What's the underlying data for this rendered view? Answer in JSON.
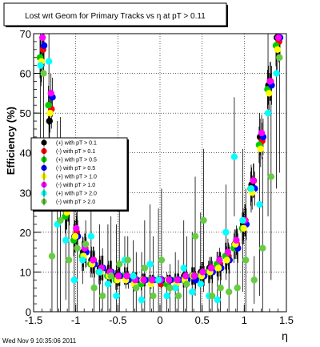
{
  "chart_data": {
    "type": "scatter",
    "title": "Lost wrt Geom for Primary Tracks vs   η at pT > 0.11",
    "xlabel": "η",
    "ylabel": "Efficiency (%)",
    "xlim": [
      -1.5,
      1.5
    ],
    "ylim": [
      0,
      70
    ],
    "x_ticks": [
      "-1.5",
      "-1",
      "-0.5",
      "0",
      "0.5",
      "1",
      "1.5"
    ],
    "y_ticks": [
      "0",
      "10",
      "20",
      "30",
      "40",
      "50",
      "60",
      "70"
    ],
    "grid": true,
    "legend_position": "left-middle",
    "footer": "Wed Nov  9 10:35:06 2011",
    "series": [
      {
        "name": "(+) with pT > 0.1",
        "color": "#000000",
        "x": [
          -1.4,
          -1.3,
          -1.2,
          -1.1,
          -1.0,
          -0.9,
          -0.8,
          -0.7,
          -0.6,
          -0.5,
          -0.4,
          -0.3,
          -0.2,
          -0.1,
          0.0,
          0.1,
          0.2,
          0.3,
          0.4,
          0.5,
          0.6,
          0.7,
          0.8,
          0.9,
          1.0,
          1.1,
          1.2,
          1.3,
          1.4
        ],
        "y": [
          62,
          48,
          33,
          25,
          19,
          15,
          13,
          11,
          10,
          9,
          9,
          8,
          8,
          8,
          8,
          8,
          8,
          9,
          9,
          10,
          11,
          12,
          14,
          17,
          22,
          32,
          44,
          57,
          69
        ]
      },
      {
        "name": "(-) with pT > 0.1",
        "color": "#ff0000",
        "x": [
          -1.4,
          -1.3,
          -1.2,
          -1.1,
          -1.0,
          -0.9,
          -0.8,
          -0.7,
          -0.6,
          -0.5,
          -0.4,
          -0.3,
          -0.2,
          -0.1,
          0.0,
          0.1,
          0.2,
          0.3,
          0.4,
          0.5,
          0.6,
          0.7,
          0.8,
          0.9,
          1.0,
          1.1,
          1.2,
          1.3,
          1.4
        ],
        "y": [
          66,
          51,
          35,
          27,
          20,
          16,
          13,
          11,
          10,
          9,
          9,
          8,
          8,
          8,
          7,
          8,
          8,
          8,
          9,
          10,
          11,
          12,
          14,
          17,
          23,
          33,
          43,
          58,
          68
        ]
      },
      {
        "name": "(+) with pT > 0.5",
        "color": "#00cc00",
        "x": [
          -1.4,
          -1.3,
          -1.2,
          -1.1,
          -1.0,
          -0.9,
          -0.8,
          -0.7,
          -0.6,
          -0.5,
          -0.4,
          -0.3,
          -0.2,
          -0.1,
          0.0,
          0.1,
          0.2,
          0.3,
          0.4,
          0.5,
          0.6,
          0.7,
          0.8,
          0.9,
          1.0,
          1.1,
          1.2,
          1.3,
          1.4
        ],
        "y": [
          64,
          52,
          33,
          24,
          18,
          14,
          12,
          10,
          9,
          8,
          9,
          8,
          7,
          8,
          8,
          7,
          8,
          8,
          9,
          9,
          10,
          12,
          14,
          16,
          21,
          31,
          42,
          56,
          67
        ]
      },
      {
        "name": "(-) with pT > 0.5",
        "color": "#0000ff",
        "x": [
          -1.4,
          -1.3,
          -1.2,
          -1.1,
          -1.0,
          -0.9,
          -0.8,
          -0.7,
          -0.6,
          -0.5,
          -0.4,
          -0.3,
          -0.2,
          -0.1,
          0.0,
          0.1,
          0.2,
          0.3,
          0.4,
          0.5,
          0.6,
          0.7,
          0.8,
          0.9,
          1.0,
          1.1,
          1.2,
          1.3,
          1.4
        ],
        "y": [
          67,
          54,
          36,
          26,
          19,
          15,
          12,
          11,
          10,
          9,
          8,
          8,
          8,
          8,
          8,
          8,
          8,
          8,
          8,
          9,
          10,
          11,
          13,
          16,
          22,
          31,
          44,
          57,
          69
        ]
      },
      {
        "name": "(+) with pT > 1.0",
        "color": "#ffff00",
        "x": [
          -1.4,
          -1.3,
          -1.2,
          -1.1,
          -1.0,
          -0.9,
          -0.8,
          -0.7,
          -0.6,
          -0.5,
          -0.4,
          -0.3,
          -0.2,
          -0.1,
          0.0,
          0.1,
          0.2,
          0.3,
          0.4,
          0.5,
          0.6,
          0.7,
          0.8,
          0.9,
          1.0,
          1.1,
          1.2,
          1.3,
          1.4
        ],
        "y": [
          63,
          50,
          34,
          25,
          19,
          14,
          12,
          10,
          9,
          8,
          8,
          7,
          8,
          7,
          8,
          8,
          7,
          8,
          9,
          9,
          10,
          11,
          13,
          17,
          21,
          30,
          41,
          55,
          66
        ]
      },
      {
        "name": "(-) with pT > 1.0",
        "color": "#ff00ff",
        "x": [
          -1.4,
          -1.3,
          -1.2,
          -1.1,
          -1.0,
          -0.9,
          -0.8,
          -0.7,
          -0.6,
          -0.5,
          -0.4,
          -0.3,
          -0.2,
          -0.1,
          0.0,
          0.1,
          0.2,
          0.3,
          0.4,
          0.5,
          0.6,
          0.7,
          0.8,
          0.9,
          1.0,
          1.1,
          1.2,
          1.3,
          1.4
        ],
        "y": [
          69,
          55,
          37,
          27,
          21,
          16,
          13,
          11,
          10,
          9,
          9,
          8,
          8,
          8,
          8,
          8,
          8,
          9,
          9,
          10,
          11,
          13,
          15,
          18,
          23,
          33,
          45,
          58,
          69
        ]
      },
      {
        "name": "(+) with pT > 2.0",
        "color": "#00ffff",
        "x": [
          -1.4,
          -1.3,
          -1.2,
          -1.1,
          -1.0,
          -0.9,
          -0.8,
          -0.7,
          -0.6,
          -0.5,
          -0.4,
          -0.3,
          -0.2,
          -0.1,
          0.0,
          0.1,
          0.2,
          0.3,
          0.4,
          0.5,
          0.6,
          0.7,
          0.8,
          0.9,
          1.0,
          1.1,
          1.2,
          1.3,
          1.4
        ],
        "y": [
          62,
          63,
          22,
          18,
          8,
          13,
          19,
          10,
          7,
          4,
          13,
          9,
          3,
          12,
          8,
          4,
          6,
          11,
          5,
          7,
          4,
          3,
          20,
          39,
          23,
          31,
          27,
          50,
          60
        ]
      },
      {
        "name": "(-) with pT > 2.0",
        "color": "#66cc44",
        "x": [
          -1.4,
          -1.3,
          -1.2,
          -1.1,
          -1.0,
          -0.9,
          -0.8,
          -0.7,
          -0.6,
          -0.5,
          -0.4,
          -0.3,
          -0.2,
          -0.1,
          0.0,
          0.1,
          0.2,
          0.3,
          0.4,
          0.5,
          0.6,
          0.7,
          0.8,
          0.9,
          1.0,
          1.1,
          1.2,
          1.3,
          1.4
        ],
        "y": [
          60,
          14,
          23,
          13,
          16,
          17,
          6,
          4,
          9,
          12,
          13,
          6,
          11,
          4,
          13,
          6,
          4,
          7,
          19,
          23,
          4,
          6,
          5,
          6,
          13,
          8,
          16,
          34,
          64
        ]
      }
    ]
  }
}
